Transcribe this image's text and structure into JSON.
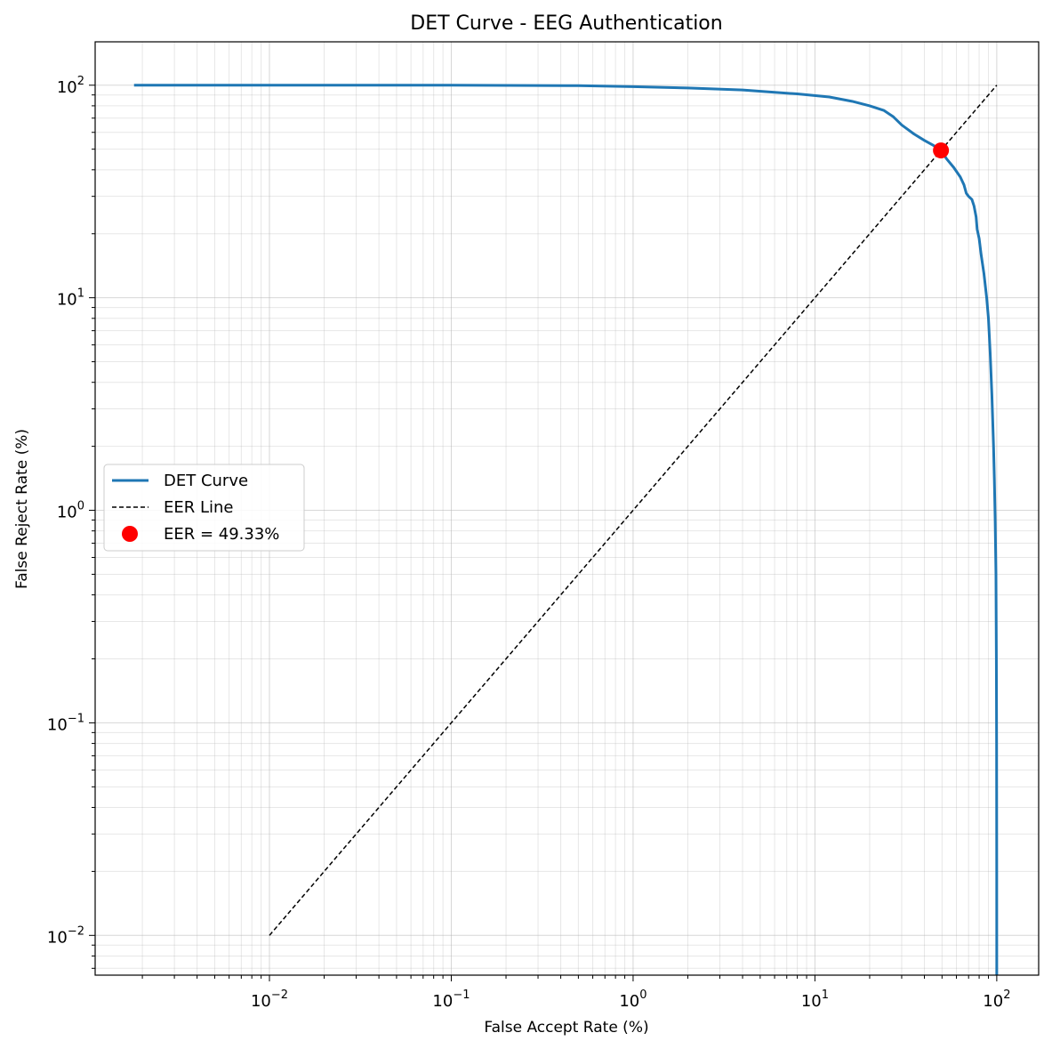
{
  "chart_data": {
    "type": "line",
    "title": "DET Curve - EEG Authentication",
    "xlabel": "False Accept Rate (%)",
    "ylabel": "False Reject Rate (%)",
    "xscale": "log",
    "yscale": "log",
    "xlim": [
      0.0011,
      170
    ],
    "ylim": [
      0.0065,
      160
    ],
    "grid": true,
    "legend_position": "center-left",
    "x_ticks": [
      {
        "base": "10",
        "exp": "−2",
        "value": 0.01
      },
      {
        "base": "10",
        "exp": "−1",
        "value": 0.1
      },
      {
        "base": "10",
        "exp": "0",
        "value": 1
      },
      {
        "base": "10",
        "exp": "1",
        "value": 10
      },
      {
        "base": "10",
        "exp": "2",
        "value": 100
      }
    ],
    "y_ticks": [
      {
        "base": "10",
        "exp": "−2",
        "value": 0.01
      },
      {
        "base": "10",
        "exp": "−1",
        "value": 0.1
      },
      {
        "base": "10",
        "exp": "0",
        "value": 1
      },
      {
        "base": "10",
        "exp": "1",
        "value": 10
      },
      {
        "base": "10",
        "exp": "2",
        "value": 100
      }
    ],
    "series": [
      {
        "name": "DET Curve",
        "color": "#1f77b4",
        "style": "solid",
        "x": [
          0.0018,
          0.01,
          0.1,
          0.5,
          1,
          2,
          4,
          8,
          12,
          16,
          20,
          24,
          27,
          30,
          35,
          40,
          45,
          49.33,
          53,
          58,
          63,
          66,
          68,
          70,
          73,
          75,
          77,
          78,
          80,
          82,
          85,
          88,
          90,
          92,
          94,
          96,
          97,
          98,
          99,
          99.5,
          99.8,
          99.95,
          100
        ],
        "y": [
          100,
          100,
          100,
          99.5,
          98.5,
          97,
          95,
          91,
          88,
          84,
          80,
          76,
          71,
          65,
          59,
          55,
          52,
          49.33,
          45,
          41,
          37,
          34,
          31,
          30,
          29,
          27,
          24,
          21,
          19,
          16,
          13,
          10,
          8,
          5.5,
          3.5,
          2,
          1.4,
          0.9,
          0.5,
          0.2,
          0.08,
          0.02,
          0.0065
        ]
      },
      {
        "name": "EER Line",
        "color": "#000000",
        "style": "dashed",
        "x": [
          0.01,
          100
        ],
        "y": [
          0.01,
          100
        ]
      }
    ],
    "markers": [
      {
        "name": "EER = 49.33%",
        "color": "#ff0000",
        "x": 49.33,
        "y": 49.33
      }
    ],
    "legend": [
      {
        "label": "DET Curve",
        "kind": "line",
        "color": "#1f77b4"
      },
      {
        "label": "EER Line",
        "kind": "dashed",
        "color": "#000000"
      },
      {
        "label": "EER = 49.33%",
        "kind": "marker",
        "color": "#ff0000"
      }
    ]
  }
}
